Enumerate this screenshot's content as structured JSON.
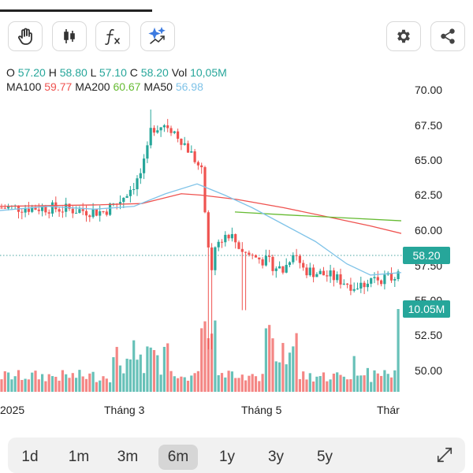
{
  "toolbar": {
    "left_tools": [
      {
        "name": "hand-icon"
      },
      {
        "name": "candlestick-icon"
      },
      {
        "name": "function-icon"
      },
      {
        "name": "sparkle-icon"
      }
    ],
    "right_tools": [
      {
        "name": "gear-icon"
      },
      {
        "name": "share-icon"
      }
    ]
  },
  "ohlc": {
    "o_label": "O",
    "o_value": "57.20",
    "h_label": "H",
    "h_value": "58.80",
    "l_label": "L",
    "l_value": "57.10",
    "c_label": "C",
    "c_value": "58.20",
    "vol_label": "Vol",
    "vol_value": "10,05M"
  },
  "moving_averages": {
    "ma100_label": "MA100",
    "ma100_value": "59.77",
    "ma200_label": "MA200",
    "ma200_value": "60.67",
    "ma50_label": "MA50",
    "ma50_value": "56.98"
  },
  "price_axis": {
    "ticks": [
      "70.00",
      "67.50",
      "65.00",
      "62.50",
      "60.00",
      "57.50",
      "55.00",
      "52.50",
      "50.00"
    ]
  },
  "time_axis": {
    "labels": [
      "2025",
      "Tháng 3",
      "Tháng 5",
      "Thár"
    ]
  },
  "badges": {
    "price": "58.20",
    "volume": "10.05M"
  },
  "colors": {
    "up": "#26a69a",
    "down": "#ef5350",
    "ma100": "#ef5350",
    "ma200": "#66bb33",
    "ma50": "#7fc3e8"
  },
  "ranges": {
    "items": [
      "1d",
      "1m",
      "3m",
      "6m",
      "1y",
      "3y",
      "5y"
    ],
    "active": "6m"
  },
  "chart_data": {
    "type": "candlestick",
    "price_range": [
      48.5,
      70
    ],
    "last_close": 58.2,
    "ma100_last": 59.77,
    "ma200_last": 60.67,
    "ma50_last": 56.98
  }
}
